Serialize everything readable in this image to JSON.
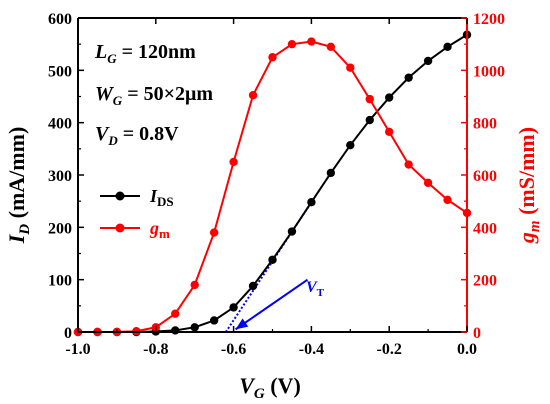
{
  "chart_data": {
    "type": "line",
    "xlabel": "V_G (V)",
    "xlabel_main": "V",
    "xlabel_sub": "G",
    "xlabel_unit": " (V)",
    "ylabel_left_main": "I",
    "ylabel_left_sub": "D",
    "ylabel_left_unit": " (mA/mm)",
    "ylabel_right_main": "g",
    "ylabel_right_sub": "m",
    "ylabel_right_unit": " (mS/mm)",
    "xlim": [
      -1.0,
      0.0
    ],
    "ylim_left": [
      0,
      600
    ],
    "ylim_right": [
      0,
      1200
    ],
    "xticks": [
      "-1.0",
      "-0.8",
      "-0.6",
      "-0.4",
      "-0.2",
      "0.0"
    ],
    "yticks_left": [
      "0",
      "100",
      "200",
      "300",
      "400",
      "500",
      "600"
    ],
    "yticks_right": [
      "0",
      "200",
      "400",
      "600",
      "800",
      "1000",
      "1200"
    ],
    "legend_position": "middle-left",
    "annotations": [
      {
        "main": "L",
        "sub": "G",
        "rest": " = 120nm"
      },
      {
        "main": "W",
        "sub": "G",
        "rest": " = 50×2μm"
      },
      {
        "main": "V",
        "sub": "D",
        "rest": " = 0.8V"
      }
    ],
    "vt_label": {
      "main": "V",
      "sub": "T"
    },
    "series": [
      {
        "name_main": "I",
        "name_sub": "DS",
        "axis": "left",
        "color": "#000000",
        "x": [
          -1.0,
          -0.95,
          -0.9,
          -0.85,
          -0.8,
          -0.75,
          -0.7,
          -0.65,
          -0.6,
          -0.55,
          -0.5,
          -0.45,
          -0.4,
          -0.35,
          -0.3,
          -0.25,
          -0.2,
          -0.15,
          -0.1,
          -0.05,
          0.0
        ],
        "y": [
          0,
          0,
          0,
          0,
          1,
          3,
          9,
          22,
          47,
          88,
          138,
          192,
          248,
          304,
          357,
          405,
          448,
          486,
          518,
          545,
          568
        ]
      },
      {
        "name_main": "g",
        "name_sub": "m",
        "axis": "right",
        "color": "#ff0000",
        "x": [
          -1.0,
          -0.95,
          -0.9,
          -0.85,
          -0.8,
          -0.75,
          -0.7,
          -0.65,
          -0.6,
          -0.55,
          -0.5,
          -0.45,
          -0.4,
          -0.35,
          -0.3,
          -0.25,
          -0.2,
          -0.15,
          -0.1,
          -0.05,
          0.0
        ],
        "y": [
          0,
          0,
          0,
          3,
          18,
          70,
          180,
          380,
          650,
          905,
          1050,
          1100,
          1110,
          1090,
          1010,
          890,
          765,
          640,
          570,
          505,
          455
        ]
      }
    ],
    "tangent_line": {
      "x1": -0.62,
      "y1": 0,
      "x2": -0.4,
      "y2": 248,
      "color": "#0000ff"
    },
    "vt_arrow": {
      "from_x": -0.41,
      "from_y": 100,
      "to_x": -0.595,
      "to_y": 5,
      "color": "#0000ff"
    }
  }
}
